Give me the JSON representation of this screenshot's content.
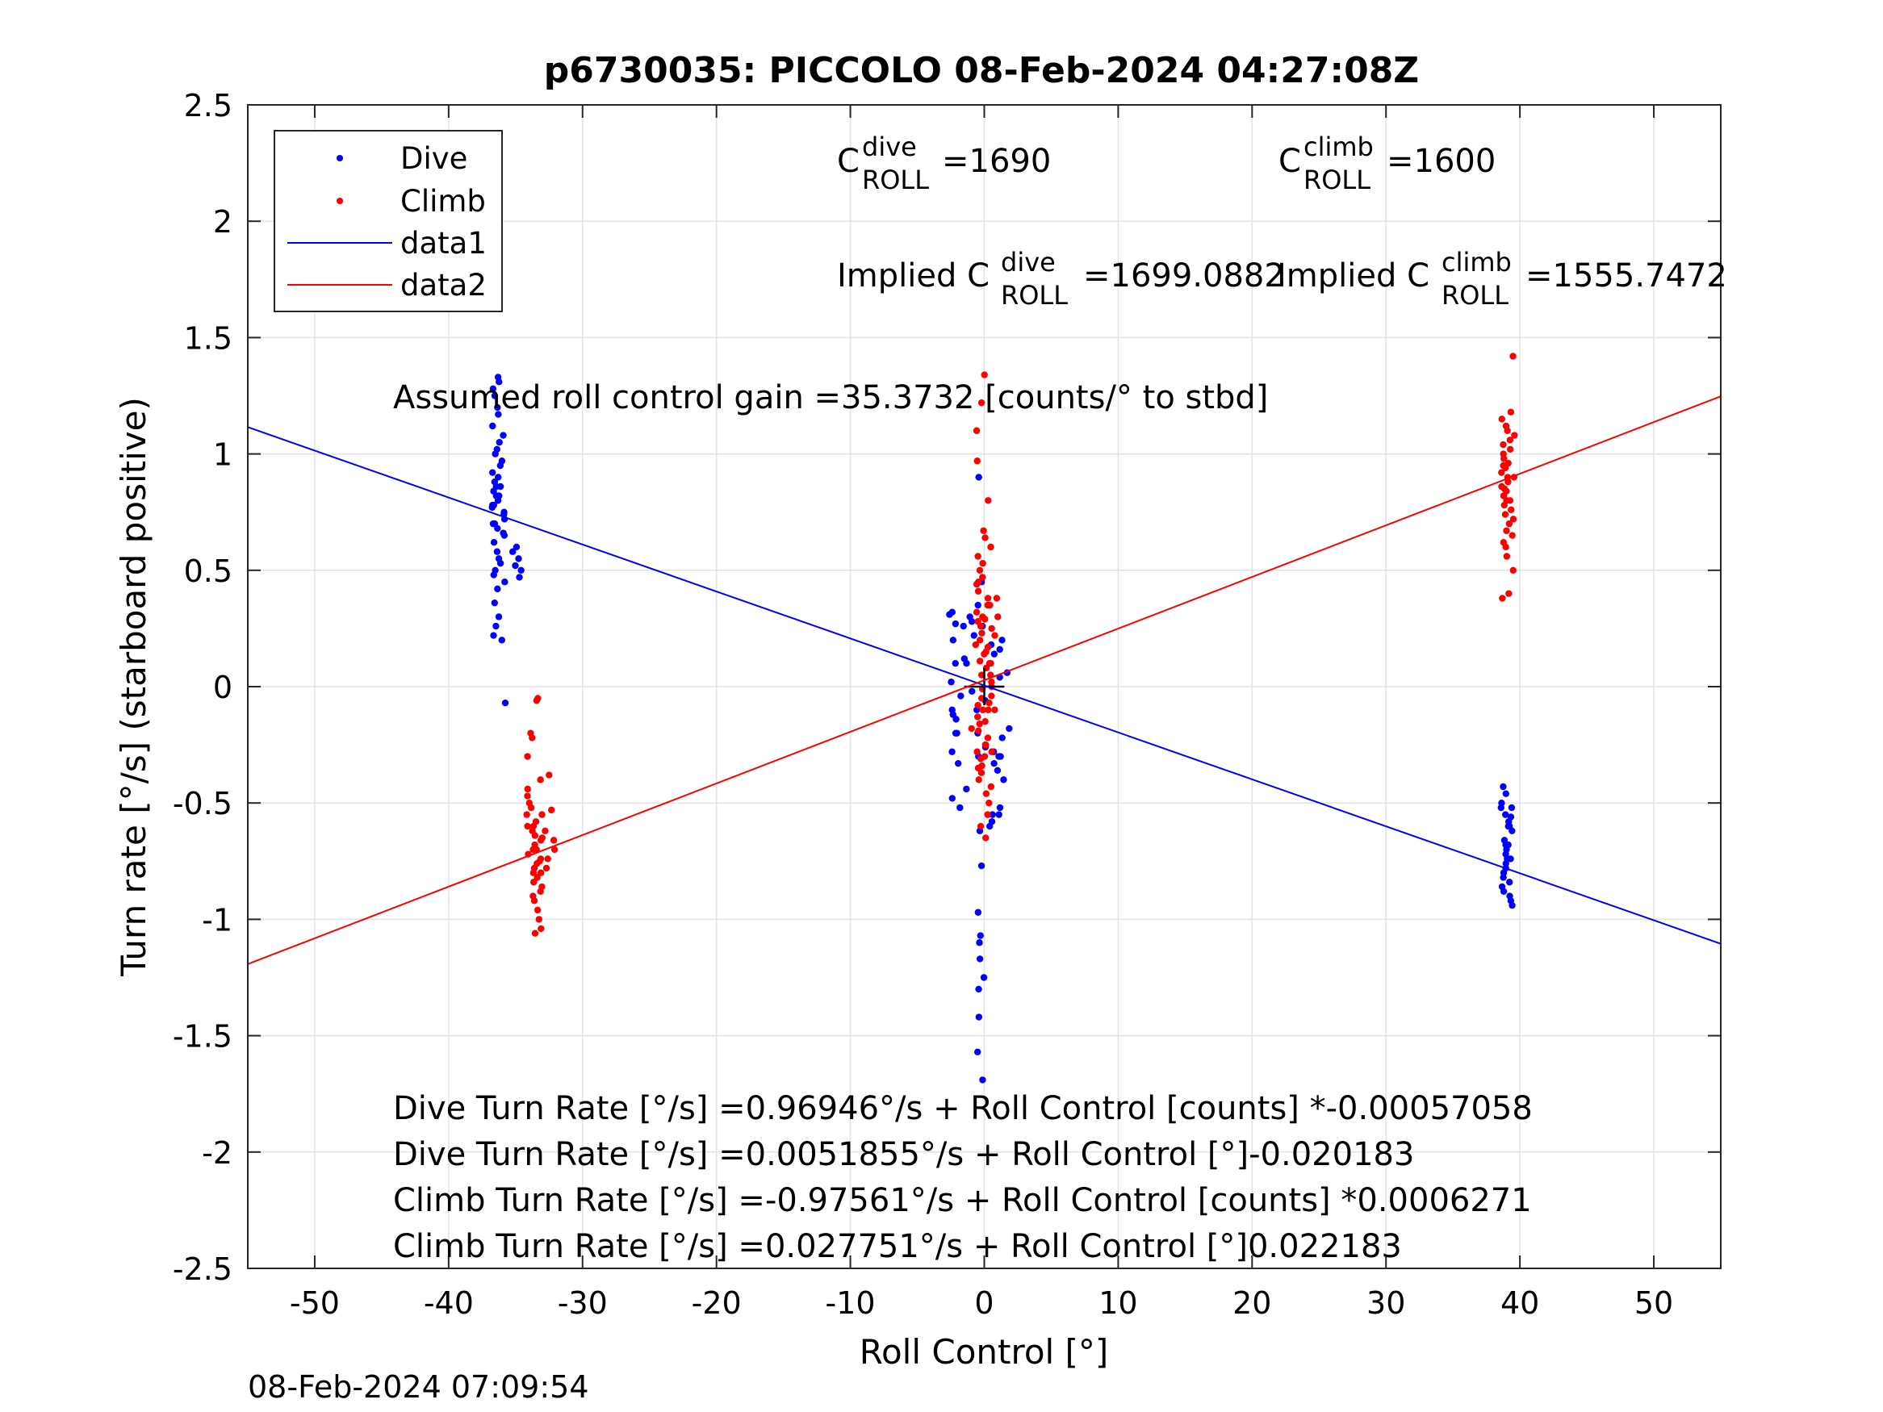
{
  "chart_data": {
    "type": "scatter",
    "title": "p6730035: PICCOLO 08-Feb-2024 04:27:08Z",
    "xlabel": "Roll Control [°]",
    "ylabel": "Turn rate [°/s] (starboard positive)",
    "xlim": [
      -55,
      55
    ],
    "ylim": [
      -2.5,
      2.5
    ],
    "xticks": [
      -50,
      -40,
      -30,
      -20,
      -10,
      0,
      10,
      20,
      30,
      40,
      50
    ],
    "yticks": [
      2.5,
      2,
      1.5,
      1,
      0.5,
      0,
      -0.5,
      -1,
      -1.5,
      -2,
      -2.5
    ],
    "xtick_labels": [
      "-50",
      "-40",
      "-30",
      "-20",
      "-10",
      "0",
      "10",
      "20",
      "30",
      "40",
      "50"
    ],
    "ytick_labels": [
      "2.5",
      "2",
      "1.5",
      "1",
      "0.5",
      "0",
      "-0.5",
      "-1",
      "-1.5",
      "-2",
      "-2.5"
    ],
    "grid": true,
    "legend_position": "top-left",
    "timestamp": "08-Feb-2024 07:09:54",
    "legend": [
      {
        "label": "Dive",
        "kind": "marker",
        "color": "#0000ff"
      },
      {
        "label": "Climb",
        "kind": "marker",
        "color": "#ff0000"
      },
      {
        "label": "data1",
        "kind": "line",
        "color": "#0000ff"
      },
      {
        "label": "data2",
        "kind": "line",
        "color": "#ff0000"
      }
    ],
    "annotations": {
      "c_dive_base": "C",
      "c_dive_sup": "dive",
      "c_dive_sub": "ROLL",
      "c_dive_val": "=1690",
      "c_climb_base": "C",
      "c_climb_sup": "climb",
      "c_climb_sub": "ROLL",
      "c_climb_val": "=1600",
      "implied_dive_prefix": "Implied C",
      "implied_dive_sup": "dive",
      "implied_dive_sub": "ROLL",
      "implied_dive_val": "=1699.0882",
      "implied_climb_prefix": "Implied C",
      "implied_climb_sup": "climb",
      "implied_climb_sub": "ROLL",
      "implied_climb_val": "=1555.7472",
      "gain": "Assumed roll control gain =35.3732 [counts/° to stbd]",
      "eq1": "Dive Turn Rate [°/s] =0.96946°/s + Roll Control [counts] *-0.00057058",
      "eq2": "Dive Turn Rate [°/s] =0.0051855°/s + Roll Control [°]-0.020183",
      "eq3": "Climb Turn Rate [°/s] =-0.97561°/s + Roll Control [counts] *0.0006271",
      "eq4": "Climb Turn Rate [°/s] =0.027751°/s + Roll Control [°]0.022183"
    },
    "series": [
      {
        "name": "data1",
        "kind": "line",
        "color": "#0000ff",
        "x": [
          -55,
          55
        ],
        "y": [
          1.1153,
          -1.1049
        ]
      },
      {
        "name": "data2",
        "kind": "line",
        "color": "#ff0000",
        "x": [
          -55,
          55
        ],
        "y": [
          -1.1923,
          1.2478
        ]
      },
      {
        "name": "Dive",
        "kind": "points",
        "color": "#0000ff",
        "clusters": [
          {
            "x": -36.3,
            "spread": 0.5,
            "y": [
              1.33,
              1.31,
              1.28,
              1.25,
              1.2,
              1.17,
              1.12,
              1.08,
              1.05,
              1.02,
              1.0,
              0.97,
              0.95,
              0.92,
              0.9,
              0.88,
              0.86,
              0.84,
              0.82,
              0.8,
              0.78,
              0.77,
              0.75,
              0.72,
              0.7,
              0.68,
              0.65,
              0.62,
              0.58,
              0.55,
              0.53,
              0.5,
              0.48,
              0.45,
              0.42,
              0.36,
              0.3,
              0.26,
              0.22,
              0.2,
              0.86,
              0.82,
              0.78,
              0.74,
              0.7,
              0.66
            ]
          },
          {
            "x": -34.9,
            "spread": 0.6,
            "y": [
              0.6,
              0.58,
              0.55,
              0.52,
              0.5,
              0.47
            ]
          },
          {
            "x": -35.7,
            "spread": 0.1,
            "y": [
              -0.07
            ]
          },
          {
            "x": 39.0,
            "spread": 0.45,
            "y": [
              -0.43,
              -0.46,
              -0.5,
              -0.52,
              -0.55,
              -0.58,
              -0.6,
              -0.62,
              -0.66,
              -0.68,
              -0.7,
              -0.72,
              -0.74,
              -0.76,
              -0.78,
              -0.8,
              -0.82,
              -0.84,
              -0.86,
              -0.88,
              -0.9,
              -0.92,
              -0.94,
              -0.52,
              -0.56,
              -0.6,
              -0.68,
              -0.74
            ]
          },
          {
            "x": -0.3,
            "spread": 2.2,
            "y": [
              0.32,
              0.3,
              0.28,
              0.26,
              0.22,
              0.18,
              0.14,
              0.1,
              0.06,
              0.02,
              -0.02,
              -0.06,
              -0.1,
              -0.14,
              -0.18,
              -0.2,
              -0.22,
              -0.26,
              -0.3,
              -0.33,
              -0.36,
              -0.4,
              -0.44,
              -0.48,
              -0.52,
              -0.55,
              -0.58,
              -0.6,
              0.2,
              0.12,
              0.04,
              -0.04,
              -0.12,
              -0.2,
              -0.28,
              0.26,
              0.16,
              -0.3
            ]
          },
          {
            "x": -0.2,
            "spread": 0.3,
            "y": [
              0.9,
              0.45,
              0.35,
              -0.62,
              -0.77,
              -0.97,
              -1.07,
              -1.1,
              -1.17,
              -1.25,
              -1.3,
              -1.42,
              -1.57,
              -1.69
            ]
          },
          {
            "x": 1.2,
            "spread": 0.6,
            "y": [
              -0.28,
              -0.3,
              -0.33,
              -0.52,
              -0.55
            ]
          },
          {
            "x": -2.3,
            "spread": 0.3,
            "y": [
              0.31,
              0.27,
              0.2,
              0.1,
              -0.1,
              -0.2
            ]
          }
        ]
      },
      {
        "name": "Climb",
        "kind": "points",
        "color": "#ff0000",
        "clusters": [
          {
            "x": -33.6,
            "spread": 0.6,
            "y": [
              -0.05,
              -0.06,
              -0.2,
              -0.22,
              -0.3,
              -0.4,
              -0.44,
              -0.47,
              -0.5,
              -0.52,
              -0.55,
              -0.58,
              -0.6,
              -0.62,
              -0.64,
              -0.66,
              -0.68,
              -0.7,
              -0.72,
              -0.74,
              -0.76,
              -0.78,
              -0.8,
              -0.82,
              -0.84,
              -0.86,
              -0.88,
              -0.9,
              -0.92,
              -0.96,
              -1.0,
              -1.04,
              -1.06,
              -0.65,
              -0.7,
              -0.75,
              -0.8,
              -0.6,
              -0.55
            ]
          },
          {
            "x": -32.6,
            "spread": 0.9,
            "y": [
              -0.38,
              -0.53,
              -0.62,
              -0.66,
              -0.7,
              -0.74,
              -0.78
            ]
          },
          {
            "x": 39.1,
            "spread": 0.5,
            "y": [
              1.42,
              1.18,
              1.15,
              1.12,
              1.1,
              1.08,
              1.06,
              1.04,
              1.02,
              1.0,
              0.98,
              0.96,
              0.94,
              0.92,
              0.9,
              0.88,
              0.86,
              0.84,
              0.82,
              0.8,
              0.78,
              0.76,
              0.74,
              0.72,
              0.7,
              0.67,
              0.65,
              0.62,
              0.6,
              0.56,
              0.5,
              0.4,
              0.38,
              0.95,
              0.9,
              0.85,
              0.8
            ]
          },
          {
            "x": 0.0,
            "spread": 0.6,
            "y": [
              1.34,
              1.22,
              1.1,
              0.97,
              0.8,
              0.67,
              0.64,
              0.6,
              0.56,
              0.53,
              0.5,
              0.47,
              0.44,
              0.41,
              0.38,
              0.35,
              0.32,
              0.29,
              0.26,
              0.23,
              0.2,
              0.17,
              0.14,
              0.11,
              0.08,
              0.05,
              0.02,
              -0.01,
              -0.04,
              -0.07,
              -0.1,
              -0.13,
              -0.16,
              -0.19,
              -0.22,
              -0.25,
              -0.28,
              -0.31,
              -0.34,
              -0.37,
              -0.4,
              -0.43,
              -0.46,
              -0.5,
              -0.55,
              -0.6,
              -0.65,
              0.45,
              0.35,
              0.25,
              0.15,
              0.05,
              -0.05,
              -0.15,
              -0.25,
              -0.35,
              0.3,
              0.1,
              -0.1,
              -0.3
            ]
          },
          {
            "x": 0.9,
            "spread": 0.5,
            "y": [
              0.38,
              0.3,
              0.22,
              0.1,
              0.0,
              -0.1
            ]
          },
          {
            "x": -0.9,
            "spread": 0.5,
            "y": [
              0.28,
              0.18,
              -0.08,
              -0.18,
              -0.28
            ]
          }
        ]
      }
    ]
  }
}
